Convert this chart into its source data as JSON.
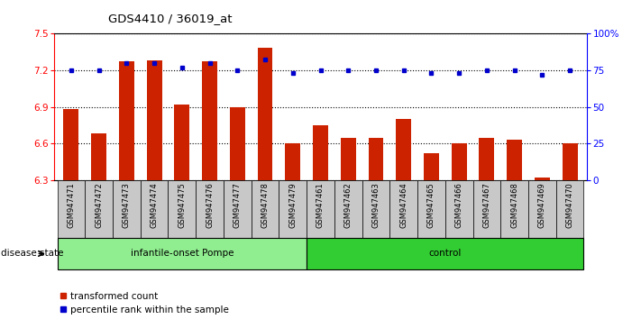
{
  "title": "GDS4410 / 36019_at",
  "samples": [
    "GSM947471",
    "GSM947472",
    "GSM947473",
    "GSM947474",
    "GSM947475",
    "GSM947476",
    "GSM947477",
    "GSM947478",
    "GSM947479",
    "GSM947461",
    "GSM947462",
    "GSM947463",
    "GSM947464",
    "GSM947465",
    "GSM947466",
    "GSM947467",
    "GSM947468",
    "GSM947469",
    "GSM947470"
  ],
  "red_values": [
    6.88,
    6.68,
    7.27,
    7.28,
    6.92,
    7.27,
    6.9,
    7.38,
    6.6,
    6.75,
    6.65,
    6.65,
    6.8,
    6.52,
    6.6,
    6.65,
    6.63,
    6.32,
    6.6
  ],
  "blue_values": [
    75,
    75,
    80,
    80,
    77,
    80,
    75,
    82,
    73,
    75,
    75,
    75,
    75,
    73,
    73,
    75,
    75,
    72,
    75
  ],
  "ylim_left": [
    6.3,
    7.5
  ],
  "ylim_right": [
    0,
    100
  ],
  "yticks_left": [
    6.3,
    6.6,
    6.9,
    7.2,
    7.5
  ],
  "yticks_right": [
    0,
    25,
    50,
    75,
    100
  ],
  "group1_label": "infantile-onset Pompe",
  "group2_label": "control",
  "group1_count": 9,
  "group2_count": 10,
  "group1_color": "#90EE90",
  "group2_color": "#32CD32",
  "disease_state_label": "disease state",
  "legend_red_label": "transformed count",
  "legend_blue_label": "percentile rank within the sample",
  "bar_color": "#CC2200",
  "dot_color": "#0000CC",
  "bg_color": "#FFFFFF",
  "tick_bg_color": "#C8C8C8"
}
